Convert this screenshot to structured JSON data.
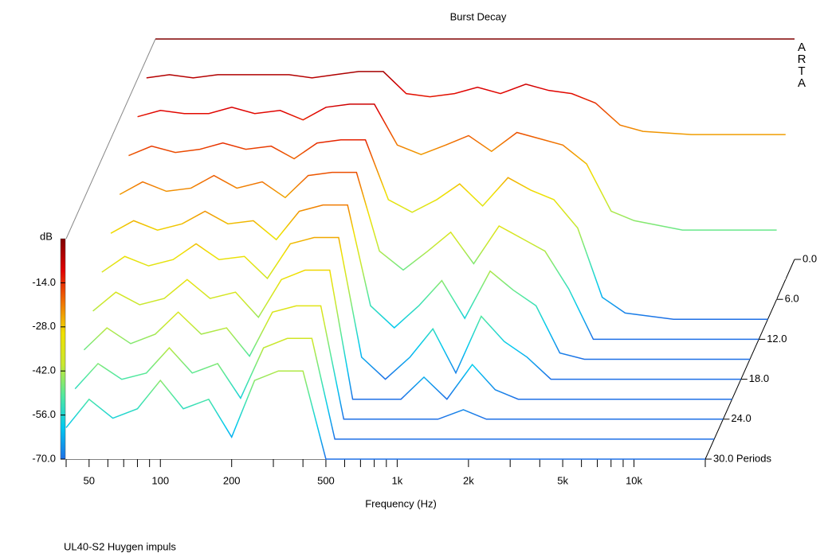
{
  "chart_data": {
    "type": "waterfall",
    "title": "Burst Decay",
    "xlabel": "Frequency (Hz)",
    "ylabel": "dB",
    "footer": "UL40-S2 Huygen impuls",
    "watermark": "ARTA",
    "xlog": true,
    "xlim": [
      40,
      20000
    ],
    "xticks": [
      {
        "value": 50,
        "label": "50"
      },
      {
        "value": 100,
        "label": "100"
      },
      {
        "value": 200,
        "label": "200"
      },
      {
        "value": 500,
        "label": "500"
      },
      {
        "value": 1000,
        "label": "1k"
      },
      {
        "value": 2000,
        "label": "2k"
      },
      {
        "value": 5000,
        "label": "5k"
      },
      {
        "value": 10000,
        "label": "10k"
      }
    ],
    "minor_xticks": [
      40,
      60,
      70,
      80,
      90,
      300,
      400,
      600,
      700,
      800,
      900,
      3000,
      4000,
      6000,
      7000,
      8000,
      9000,
      20000
    ],
    "ylim": [
      -70,
      0
    ],
    "yticks": [
      {
        "value": -70,
        "label": "-70.0"
      },
      {
        "value": -56,
        "label": "-56.0"
      },
      {
        "value": -42,
        "label": "-42.0"
      },
      {
        "value": -28,
        "label": "-28.0"
      },
      {
        "value": -14,
        "label": "-14.0"
      }
    ],
    "zlim": [
      0,
      30
    ],
    "zticks": [
      {
        "value": 0,
        "label": "0.0"
      },
      {
        "value": 6,
        "label": "6.0"
      },
      {
        "value": 12,
        "label": "12.0"
      },
      {
        "value": 18,
        "label": "18.0"
      },
      {
        "value": 24,
        "label": "24.0"
      },
      {
        "value": 30,
        "label": "30.0 Periods"
      }
    ],
    "colormap": [
      "#1e6fe6",
      "#00c8f0",
      "#50e8a0",
      "#c8e830",
      "#f0e000",
      "#f07000",
      "#e00000",
      "#800000"
    ],
    "x": [
      40,
      50,
      63,
      80,
      100,
      125,
      160,
      200,
      250,
      315,
      400,
      500,
      630,
      800,
      1000,
      1250,
      1600,
      2000,
      2500,
      3150,
      4000,
      5000,
      8000,
      12500,
      20000
    ],
    "z": [
      0,
      3,
      6,
      9,
      12,
      15,
      18,
      21,
      24,
      27,
      30
    ],
    "values": [
      [
        0,
        0,
        0,
        0,
        0,
        0,
        0,
        0,
        0,
        0,
        0,
        0,
        0,
        0,
        0,
        0,
        0,
        0,
        0,
        0,
        0,
        0,
        0,
        0,
        0
      ],
      [
        -6,
        -5,
        -6,
        -5,
        -5,
        -5,
        -5,
        -6,
        -5,
        -4,
        -4,
        -11,
        -12,
        -11,
        -9,
        -11,
        -8,
        -10,
        -11,
        -14,
        -21,
        -23,
        -24,
        -24,
        -24
      ],
      [
        -12,
        -10,
        -11,
        -11,
        -9,
        -11,
        -10,
        -13,
        -9,
        -8,
        -8,
        -21,
        -24,
        -21,
        -18,
        -23,
        -17,
        -19,
        -21,
        -27,
        -42,
        -45,
        -48,
        -48,
        -48
      ],
      [
        -18,
        -15,
        -17,
        -16,
        -14,
        -16,
        -15,
        -19,
        -14,
        -13,
        -13,
        -32,
        -36,
        -32,
        -27,
        -34,
        -25,
        -29,
        -32,
        -41,
        -63,
        -68,
        -70,
        -70,
        -70
      ],
      [
        -24,
        -20,
        -23,
        -22,
        -18,
        -22,
        -20,
        -25,
        -18,
        -17,
        -17,
        -42,
        -48,
        -42,
        -36,
        -46,
        -34,
        -38,
        -42,
        -54,
        -70,
        -70,
        -70,
        -70,
        -70
      ],
      [
        -30,
        -26,
        -29,
        -27,
        -23,
        -27,
        -26,
        -32,
        -23,
        -21,
        -21,
        -53,
        -60,
        -53,
        -45,
        -57,
        -42,
        -48,
        -53,
        -68,
        -70,
        -70,
        -70,
        -70,
        -70
      ],
      [
        -36,
        -31,
        -34,
        -32,
        -27,
        -32,
        -31,
        -38,
        -27,
        -25,
        -25,
        -63,
        -70,
        -63,
        -54,
        -68,
        -50,
        -58,
        -63,
        -70,
        -70,
        -70,
        -70,
        -70,
        -70
      ],
      [
        -42,
        -36,
        -40,
        -38,
        -32,
        -38,
        -36,
        -44,
        -32,
        -29,
        -29,
        -70,
        -70,
        -70,
        -63,
        -70,
        -59,
        -67,
        -70,
        -70,
        -70,
        -70,
        -70,
        -70,
        -70
      ],
      [
        -48,
        -41,
        -46,
        -43,
        -36,
        -43,
        -41,
        -50,
        -36,
        -34,
        -34,
        -70,
        -70,
        -70,
        -70,
        -70,
        -67,
        -70,
        -70,
        -70,
        -70,
        -70,
        -70,
        -70,
        -70
      ],
      [
        -54,
        -46,
        -51,
        -49,
        -41,
        -49,
        -46,
        -57,
        -41,
        -38,
        -38,
        -70,
        -70,
        -70,
        -70,
        -70,
        -70,
        -70,
        -70,
        -70,
        -70,
        -70,
        -70,
        -70,
        -70
      ],
      [
        -60,
        -51,
        -57,
        -54,
        -45,
        -54,
        -51,
        -63,
        -45,
        -42,
        -42,
        -70,
        -70,
        -70,
        -70,
        -70,
        -70,
        -70,
        -70,
        -70,
        -70,
        -70,
        -70,
        -70,
        -70
      ]
    ]
  }
}
